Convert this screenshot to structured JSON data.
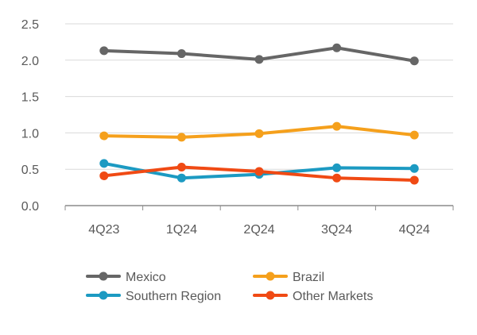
{
  "chart_data": {
    "type": "line",
    "title": "",
    "xlabel": "",
    "ylabel": "",
    "categories": [
      "4Q23",
      "1Q24",
      "2Q24",
      "3Q24",
      "4Q24"
    ],
    "ylim": [
      0,
      2.5
    ],
    "y_ticks": [
      "0.0",
      "0.5",
      "1.0",
      "1.5",
      "2.0",
      "2.5"
    ],
    "grid": true,
    "legend_position": "bottom",
    "series": [
      {
        "name": "Mexico",
        "color": "#666666",
        "values": [
          2.13,
          2.09,
          2.01,
          2.17,
          1.99
        ]
      },
      {
        "name": "Brazil",
        "color": "#F5A01C",
        "values": [
          0.96,
          0.94,
          0.99,
          1.09,
          0.97
        ]
      },
      {
        "name": "Southern Region",
        "color": "#1C9AC2",
        "values": [
          0.58,
          0.38,
          0.43,
          0.52,
          0.51
        ]
      },
      {
        "name": "Other Markets",
        "color": "#F04A14",
        "values": [
          0.41,
          0.53,
          0.47,
          0.38,
          0.35
        ]
      }
    ]
  }
}
